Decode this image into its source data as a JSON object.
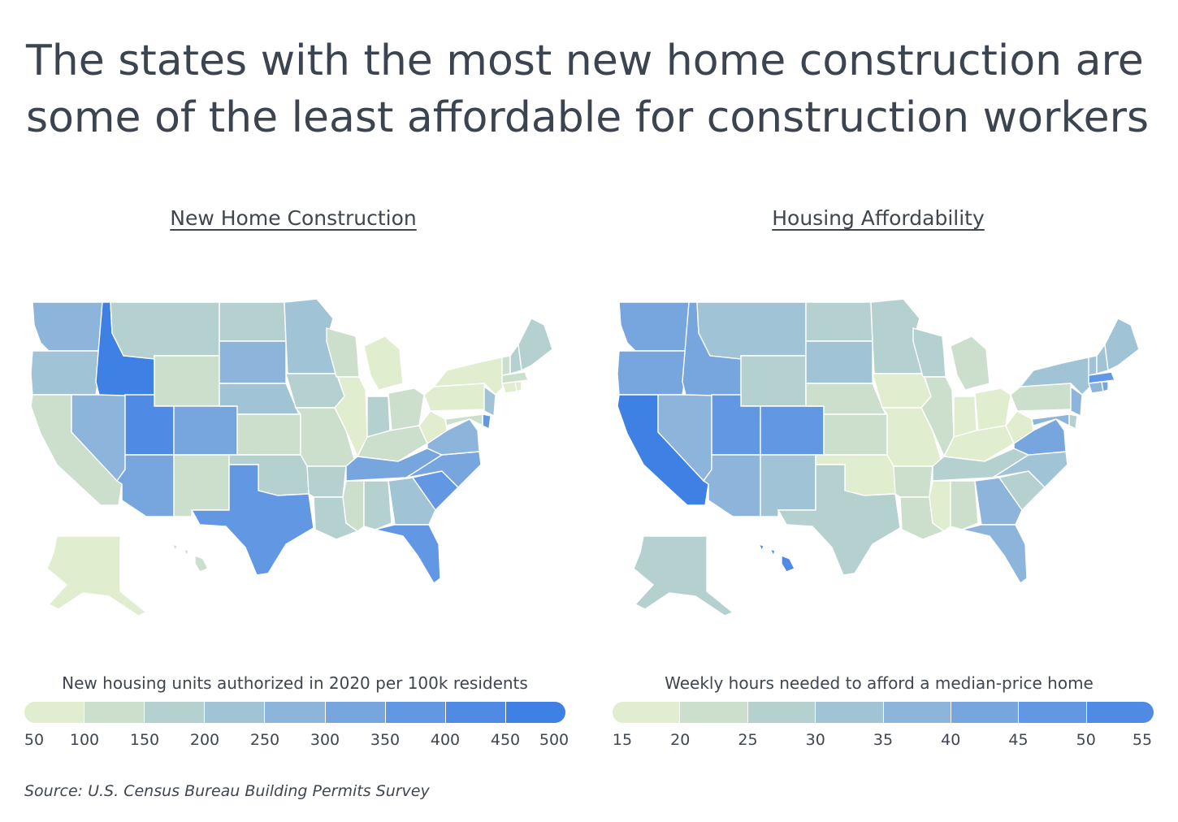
{
  "title": "The states with the most new home construction are some of the least affordable for construction workers",
  "source": "Source: U.S. Census Bureau Building Permits Survey",
  "palette": [
    "#e0edcf",
    "#cbdfcc",
    "#b5d1cf",
    "#a0c3d6",
    "#8db4db",
    "#77a5de",
    "#6297e3",
    "#4f8ae4",
    "#3f80e4"
  ],
  "maps": [
    {
      "id": "construction",
      "title": "New Home Construction",
      "legend_title": "New housing units authorized in 2020 per 100k residents",
      "ticks": [
        "50",
        "100",
        "150",
        "200",
        "250",
        "300",
        "350",
        "400",
        "450",
        "500"
      ],
      "state_bins": {
        "WA": 4,
        "OR": 3,
        "CA": 1,
        "NV": 4,
        "ID": 8,
        "MT": 2,
        "WY": 1,
        "UT": 7,
        "AZ": 5,
        "CO": 5,
        "NM": 1,
        "ND": 2,
        "SD": 4,
        "NE": 3,
        "KS": 1,
        "OK": 2,
        "TX": 6,
        "MN": 3,
        "IA": 2,
        "MO": 1,
        "AR": 2,
        "LA": 2,
        "WI": 1,
        "IL": 0,
        "MI": 0,
        "IN": 2,
        "OH": 1,
        "KY": 1,
        "TN": 5,
        "MS": 1,
        "AL": 2,
        "GA": 3,
        "FL": 6,
        "SC": 6,
        "NC": 5,
        "VA": 4,
        "WV": 0,
        "PA": 0,
        "NY": 0,
        "NJ": 3,
        "DE": 6,
        "MD": 1,
        "CT": 0,
        "RI": 0,
        "MA": 1,
        "VT": 1,
        "NH": 2,
        "ME": 2,
        "AK": 0,
        "HI": 1
      }
    },
    {
      "id": "affordability",
      "title": "Housing Affordability",
      "legend_title": "Weekly hours needed to afford a median-price home",
      "ticks": [
        "15",
        "20",
        "25",
        "30",
        "35",
        "40",
        "45",
        "50",
        "55"
      ],
      "state_bins": {
        "WA": 5,
        "OR": 5,
        "CA": 8,
        "NV": 4,
        "ID": 5,
        "MT": 3,
        "WY": 2,
        "UT": 6,
        "AZ": 4,
        "CO": 6,
        "NM": 3,
        "ND": 2,
        "SD": 3,
        "NE": 1,
        "KS": 1,
        "OK": 0,
        "TX": 2,
        "MN": 2,
        "IA": 0,
        "MO": 0,
        "AR": 1,
        "LA": 1,
        "WI": 2,
        "IL": 1,
        "MI": 1,
        "IN": 0,
        "OH": 0,
        "KY": 0,
        "TN": 2,
        "MS": 0,
        "AL": 1,
        "GA": 4,
        "FL": 4,
        "SC": 2,
        "NC": 3,
        "VA": 5,
        "WV": 0,
        "PA": 1,
        "NY": 3,
        "NJ": 4,
        "DE": 2,
        "MD": 4,
        "CT": 4,
        "RI": 5,
        "MA": 6,
        "VT": 3,
        "NH": 3,
        "ME": 3,
        "AK": 2,
        "HI": 7
      }
    }
  ]
}
